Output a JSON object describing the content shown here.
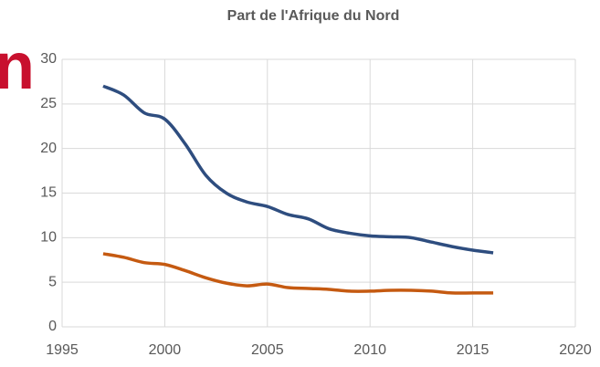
{
  "chart_data": {
    "type": "line",
    "title": "Part de l'Afrique du Nord",
    "annotation": "n",
    "x": [
      1997,
      1998,
      1999,
      2000,
      2001,
      2002,
      2003,
      2004,
      2005,
      2006,
      2007,
      2008,
      2009,
      2010,
      2011,
      2012,
      2013,
      2014,
      2015,
      2016
    ],
    "series": [
      {
        "color": "#2e4d7f",
        "values": [
          27,
          26,
          24,
          23.3,
          20.5,
          17,
          15,
          14,
          13.5,
          12.6,
          12.1,
          11,
          10.5,
          10.2,
          10.1,
          10,
          9.5,
          9,
          8.6,
          8.3
        ]
      },
      {
        "color": "#c55a11",
        "values": [
          8.2,
          7.8,
          7.2,
          7,
          6.3,
          5.5,
          4.9,
          4.6,
          4.8,
          4.4,
          4.3,
          4.2,
          4.0,
          4.0,
          4.1,
          4.1,
          4.0,
          3.8,
          3.8,
          3.8
        ]
      }
    ],
    "xlim": [
      1995,
      2020
    ],
    "xticks": [
      1995,
      2000,
      2005,
      2010,
      2015,
      2020
    ],
    "ylim": [
      0,
      30
    ],
    "yticks": [
      0,
      5,
      10,
      15,
      20,
      25,
      30
    ],
    "grid": true
  }
}
